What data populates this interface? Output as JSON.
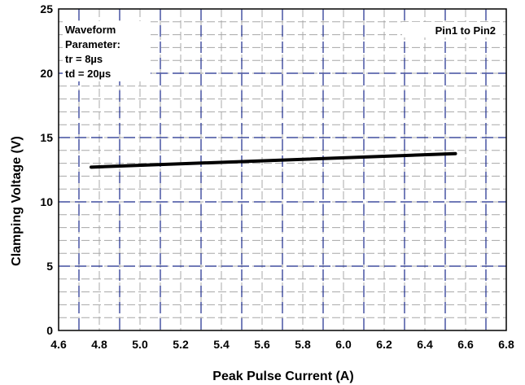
{
  "chart_data": {
    "type": "line",
    "title": "",
    "xlabel": "Peak Pulse Current (A)",
    "ylabel": "Clamping Voltage (V)",
    "xlim": [
      4.6,
      6.8
    ],
    "ylim": [
      0,
      25
    ],
    "x_ticks": [
      4.6,
      4.8,
      5.0,
      5.2,
      5.4,
      5.6,
      5.8,
      6.0,
      6.2,
      6.4,
      6.6,
      6.8
    ],
    "x_tick_labels": [
      "4.6",
      "4.8",
      "5.0",
      "5.2",
      "5.4",
      "5.6",
      "5.8",
      "6.0",
      "6.2",
      "6.4",
      "6.6",
      "6.8"
    ],
    "y_ticks": [
      0,
      5,
      10,
      15,
      20,
      25
    ],
    "y_tick_labels": [
      "0",
      "5",
      "10",
      "15",
      "20",
      "25"
    ],
    "x_minor_step": 0.1,
    "y_minor_step": 1,
    "grid": true,
    "series": [
      {
        "x": [
          4.76,
          6.55
        ],
        "y": [
          12.7,
          13.75
        ],
        "color": "#000000"
      }
    ],
    "annotations": {
      "waveform_lines": [
        "Waveform",
        "Parameter:",
        "tr = 8µs",
        "td = 20µs"
      ],
      "pin_label": "Pin1 to Pin2"
    },
    "colors": {
      "major_grid": "#1a2a8c",
      "minor_grid": "#a8a8a8",
      "line": "#000000"
    }
  }
}
